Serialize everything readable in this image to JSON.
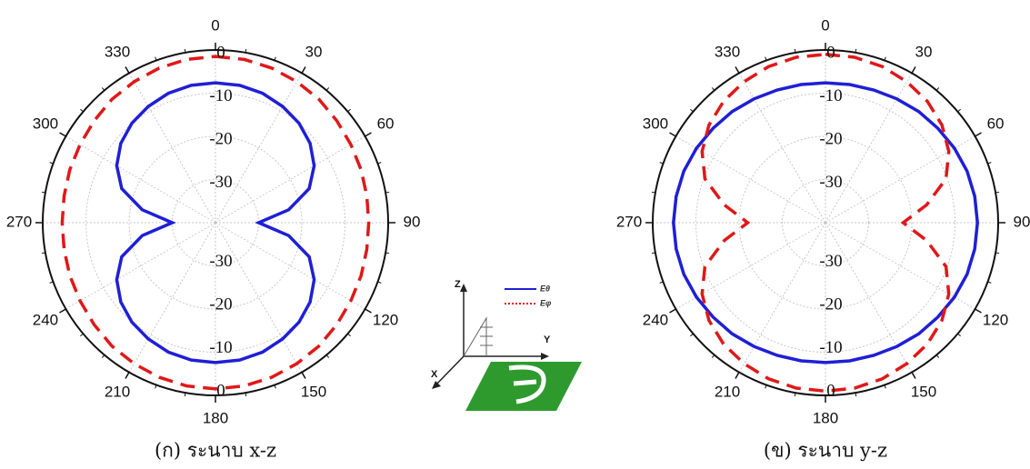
{
  "chart_data": [
    {
      "type": "polar",
      "caption": "(ก) ระนาบ x-z",
      "rlim": [
        -40,
        0
      ],
      "rticks": [
        0,
        -10,
        -20,
        -30
      ],
      "angle_ticks": [
        0,
        30,
        60,
        90,
        120,
        150,
        180,
        210,
        240,
        270,
        300,
        330
      ],
      "theta": [
        0,
        10,
        20,
        30,
        40,
        50,
        60,
        70,
        80,
        90,
        100,
        110,
        120,
        130,
        140,
        150,
        160,
        170,
        180,
        190,
        200,
        210,
        220,
        230,
        240,
        250,
        260,
        270,
        280,
        290,
        300,
        310,
        320,
        330,
        340,
        350
      ],
      "series": [
        {
          "name": "Eθ",
          "color": "#1f1fd6",
          "dash": "solid",
          "values": [
            -7.6,
            -7.7,
            -8.1,
            -8.9,
            -9.9,
            -11.4,
            -13.6,
            -16.9,
            -22.8,
            -30,
            -22.8,
            -16.9,
            -13.6,
            -11.4,
            -9.9,
            -8.9,
            -8.1,
            -7.7,
            -7.6,
            -7.7,
            -8.1,
            -8.9,
            -9.9,
            -11.4,
            -13.6,
            -16.9,
            -22.8,
            -30,
            -22.8,
            -16.9,
            -13.6,
            -11.4,
            -9.9,
            -8.9,
            -8.1,
            -7.7
          ]
        },
        {
          "name": "Eφ",
          "color": "#e01818",
          "dash": "dashed",
          "values": [
            -1.5,
            -1.6,
            -1.9,
            -2.3,
            -2.7,
            -3.3,
            -3.8,
            -4.1,
            -4.4,
            -4.5,
            -4.4,
            -4.1,
            -3.8,
            -3.3,
            -2.7,
            -2.3,
            -1.9,
            -1.6,
            -1.5,
            -1.6,
            -1.9,
            -2.3,
            -2.7,
            -3.3,
            -3.8,
            -4.1,
            -4.4,
            -4.5,
            -4.4,
            -4.1,
            -3.8,
            -3.3,
            -2.7,
            -2.3,
            -1.9,
            -1.6
          ]
        }
      ]
    },
    {
      "type": "polar",
      "caption": "(ข) ระนาบ y-z",
      "rlim": [
        -40,
        0
      ],
      "rticks": [
        0,
        -10,
        -20,
        -30
      ],
      "angle_ticks": [
        0,
        30,
        60,
        90,
        120,
        150,
        180,
        210,
        240,
        270,
        300,
        330
      ],
      "theta": [
        0,
        10,
        20,
        30,
        40,
        50,
        60,
        70,
        80,
        90,
        100,
        110,
        120,
        130,
        140,
        150,
        160,
        170,
        180,
        190,
        200,
        210,
        220,
        230,
        240,
        250,
        260,
        270,
        280,
        290,
        300,
        310,
        320,
        330,
        340,
        350
      ],
      "series": [
        {
          "name": "Eθ",
          "color": "#1f1fd6",
          "dash": "solid",
          "values": [
            -7.6,
            -7.5,
            -7.3,
            -6.9,
            -6.4,
            -6.0,
            -5.5,
            -5.1,
            -4.9,
            -4.8,
            -4.9,
            -5.1,
            -5.5,
            -6.0,
            -6.4,
            -6.9,
            -7.3,
            -7.5,
            -7.6,
            -7.5,
            -7.3,
            -6.9,
            -6.4,
            -6.0,
            -5.5,
            -5.1,
            -4.9,
            -4.8,
            -4.9,
            -5.1,
            -5.5,
            -6.0,
            -6.4,
            -6.9,
            -7.3,
            -7.5
          ]
        },
        {
          "name": "Eφ",
          "color": "#e01818",
          "dash": "dashed",
          "values": [
            -1,
            -1.1,
            -1.5,
            -2.3,
            -3.3,
            -4.8,
            -7,
            -10.3,
            -16.2,
            -22,
            -16.2,
            -10.3,
            -7,
            -4.8,
            -3.3,
            -2.3,
            -1.5,
            -1.1,
            -1,
            -1.1,
            -1.5,
            -2.3,
            -3.3,
            -4.8,
            -7,
            -10.3,
            -16.2,
            -22,
            -16.2,
            -10.3,
            -7,
            -4.8,
            -3.3,
            -2.3,
            -1.5,
            -1.1
          ]
        }
      ]
    }
  ],
  "inset": {
    "axis_labels": {
      "z": "Z",
      "y": "Y",
      "x": "X"
    }
  }
}
